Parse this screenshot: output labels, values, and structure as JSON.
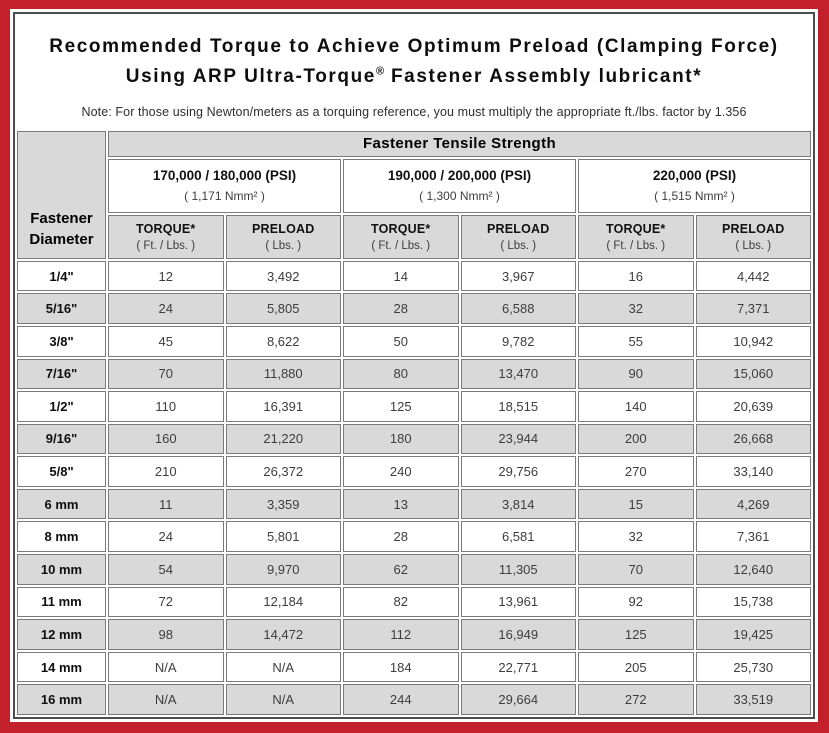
{
  "colors": {
    "frame_red": "#c2202a",
    "cell_gray": "#d9d9d9",
    "cell_border": "#7a7a7a",
    "inner_frame_border": "#4d4d4d"
  },
  "title": {
    "line1": "Recommended Torque to Achieve Optimum Preload (Clamping Force)",
    "line2_pre": "Using ARP Ultra-Torque",
    "line2_reg": "®",
    "line2_post": " Fastener Assembly lubricant*"
  },
  "note": "Note: For those using Newton/meters as a torquing reference, you must multiply the appropriate ft./lbs. factor by 1.356",
  "table": {
    "tensile_header": "Fastener Tensile Strength",
    "diameter_header_line1": "Fastener",
    "diameter_header_line2": "Diameter",
    "groups": [
      {
        "psi": "170,000 / 180,000 (PSI)",
        "nmm": "( 1,171 Nmm² )"
      },
      {
        "psi": "190,000 / 200,000 (PSI)",
        "nmm": "( 1,300 Nmm² )"
      },
      {
        "psi": "220,000 (PSI)",
        "nmm": "( 1,515 Nmm² )"
      }
    ],
    "sub_headers": {
      "torque_label": "TORQUE*",
      "torque_unit": "( Ft. / Lbs. )",
      "preload_label": "PRELOAD",
      "preload_unit": "( Lbs. )"
    },
    "rows": [
      {
        "diameter": "1/4\"",
        "values": [
          "12",
          "3,492",
          "14",
          "3,967",
          "16",
          "4,442"
        ]
      },
      {
        "diameter": "5/16\"",
        "values": [
          "24",
          "5,805",
          "28",
          "6,588",
          "32",
          "7,371"
        ]
      },
      {
        "diameter": "3/8\"",
        "values": [
          "45",
          "8,622",
          "50",
          "9,782",
          "55",
          "10,942"
        ]
      },
      {
        "diameter": "7/16\"",
        "values": [
          "70",
          "11,880",
          "80",
          "13,470",
          "90",
          "15,060"
        ]
      },
      {
        "diameter": "1/2\"",
        "values": [
          "110",
          "16,391",
          "125",
          "18,515",
          "140",
          "20,639"
        ]
      },
      {
        "diameter": "9/16\"",
        "values": [
          "160",
          "21,220",
          "180",
          "23,944",
          "200",
          "26,668"
        ]
      },
      {
        "diameter": "5/8\"",
        "values": [
          "210",
          "26,372",
          "240",
          "29,756",
          "270",
          "33,140"
        ]
      },
      {
        "diameter": "6 mm",
        "values": [
          "11",
          "3,359",
          "13",
          "3,814",
          "15",
          "4,269"
        ]
      },
      {
        "diameter": "8 mm",
        "values": [
          "24",
          "5,801",
          "28",
          "6,581",
          "32",
          "7,361"
        ]
      },
      {
        "diameter": "10 mm",
        "values": [
          "54",
          "9,970",
          "62",
          "11,305",
          "70",
          "12,640"
        ]
      },
      {
        "diameter": "11 mm",
        "values": [
          "72",
          "12,184",
          "82",
          "13,961",
          "92",
          "15,738"
        ]
      },
      {
        "diameter": "12 mm",
        "values": [
          "98",
          "14,472",
          "112",
          "16,949",
          "125",
          "19,425"
        ]
      },
      {
        "diameter": "14 mm",
        "values": [
          "N/A",
          "N/A",
          "184",
          "22,771",
          "205",
          "25,730"
        ]
      },
      {
        "diameter": "16 mm",
        "values": [
          "N/A",
          "N/A",
          "244",
          "29,664",
          "272",
          "33,519"
        ]
      }
    ]
  }
}
